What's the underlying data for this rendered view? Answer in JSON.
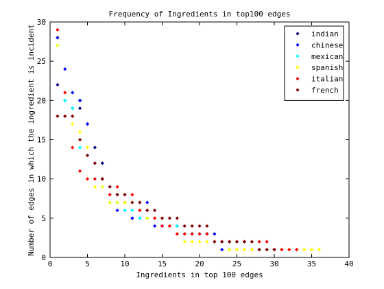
{
  "chart_data": {
    "type": "scatter",
    "title": "Frequency of Ingredients in top100 edges",
    "xlabel": "Ingredients in top 100 edges",
    "ylabel": "Number of edges in which the ingredient is incident",
    "xlim": [
      0,
      40
    ],
    "ylim": [
      0,
      30
    ],
    "xticks": [
      0,
      5,
      10,
      15,
      20,
      25,
      30,
      35,
      40
    ],
    "yticks": [
      0,
      5,
      10,
      15,
      20,
      25,
      30
    ],
    "grid": false,
    "legend_position": "top-right",
    "series": [
      {
        "name": "indian",
        "color": "#000080",
        "x": [
          1,
          1,
          2,
          3,
          4,
          4,
          5,
          6,
          7,
          8,
          9,
          10,
          11,
          12,
          13,
          14,
          15,
          16,
          17,
          18,
          19,
          20,
          21,
          22,
          23,
          24,
          25,
          26,
          27,
          28,
          29,
          30
        ],
        "y": [
          28,
          22,
          20,
          19,
          20,
          19,
          17,
          14,
          12,
          9,
          8,
          7,
          5,
          6,
          5,
          5,
          4,
          4,
          4,
          3,
          3,
          3,
          3,
          2,
          2,
          2,
          2,
          2,
          1,
          1,
          1,
          1
        ]
      },
      {
        "name": "chinese",
        "color": "#0000ff",
        "x": [
          1,
          2,
          3,
          4,
          5,
          6,
          7,
          8,
          9,
          10,
          11,
          12,
          13,
          14,
          15,
          16,
          17,
          18,
          19,
          20,
          21,
          22,
          23,
          24
        ],
        "y": [
          28,
          24,
          21,
          20,
          17,
          12,
          10,
          8,
          6,
          6,
          5,
          5,
          7,
          4,
          4,
          4,
          4,
          3,
          3,
          3,
          3,
          3,
          1,
          1
        ]
      },
      {
        "name": "mexican",
        "color": "#00ffff",
        "x": [
          1,
          2,
          3,
          4,
          5,
          6,
          7,
          8,
          9,
          10,
          11,
          12,
          13,
          14,
          15,
          16,
          17,
          18,
          19,
          20,
          21,
          22,
          23
        ],
        "y": [
          27,
          20,
          19,
          14,
          13,
          10,
          9,
          7,
          7,
          6,
          6,
          5,
          5,
          5,
          4,
          4,
          4,
          3,
          3,
          3,
          3,
          2,
          2
        ]
      },
      {
        "name": "spanish",
        "color": "#ffff00",
        "x": [
          1,
          2,
          3,
          4,
          5,
          6,
          7,
          8,
          9,
          10,
          11,
          12,
          13,
          14,
          15,
          16,
          17,
          18,
          19,
          20,
          21,
          22,
          23,
          24,
          25,
          26,
          27,
          28,
          29,
          30,
          31,
          32,
          33,
          34,
          35,
          36
        ],
        "y": [
          27,
          21,
          17,
          16,
          14,
          9,
          9,
          7,
          7,
          7,
          7,
          6,
          5,
          5,
          5,
          4,
          3,
          2,
          2,
          2,
          2,
          2,
          2,
          1,
          1,
          1,
          1,
          1,
          1,
          1,
          1,
          1,
          1,
          1,
          1,
          1
        ]
      },
      {
        "name": "italian",
        "color": "#ff0000",
        "x": [
          1,
          2,
          3,
          4,
          5,
          6,
          7,
          8,
          9,
          10,
          11,
          12,
          13,
          14,
          15,
          16,
          17,
          18,
          19,
          20,
          21,
          22,
          23,
          24,
          25,
          26,
          27,
          28,
          29,
          30,
          31,
          32,
          33
        ],
        "y": [
          29,
          21,
          14,
          11,
          10,
          10,
          10,
          8,
          9,
          8,
          8,
          6,
          6,
          5,
          4,
          4,
          3,
          3,
          3,
          3,
          3,
          2,
          2,
          2,
          2,
          2,
          2,
          2,
          2,
          1,
          1,
          1,
          1
        ]
      },
      {
        "name": "french",
        "color": "#800000",
        "x": [
          1,
          2,
          3,
          4,
          5,
          6,
          7,
          8,
          9,
          10,
          11,
          12,
          13,
          14,
          15,
          16,
          17,
          18,
          19,
          20,
          21,
          22,
          23,
          24,
          25,
          26,
          27,
          28,
          29,
          30
        ],
        "y": [
          18,
          18,
          18,
          15,
          13,
          12,
          10,
          9,
          8,
          8,
          7,
          7,
          6,
          6,
          5,
          5,
          5,
          4,
          4,
          4,
          4,
          2,
          2,
          2,
          2,
          2,
          2,
          1,
          1,
          1
        ]
      }
    ]
  }
}
